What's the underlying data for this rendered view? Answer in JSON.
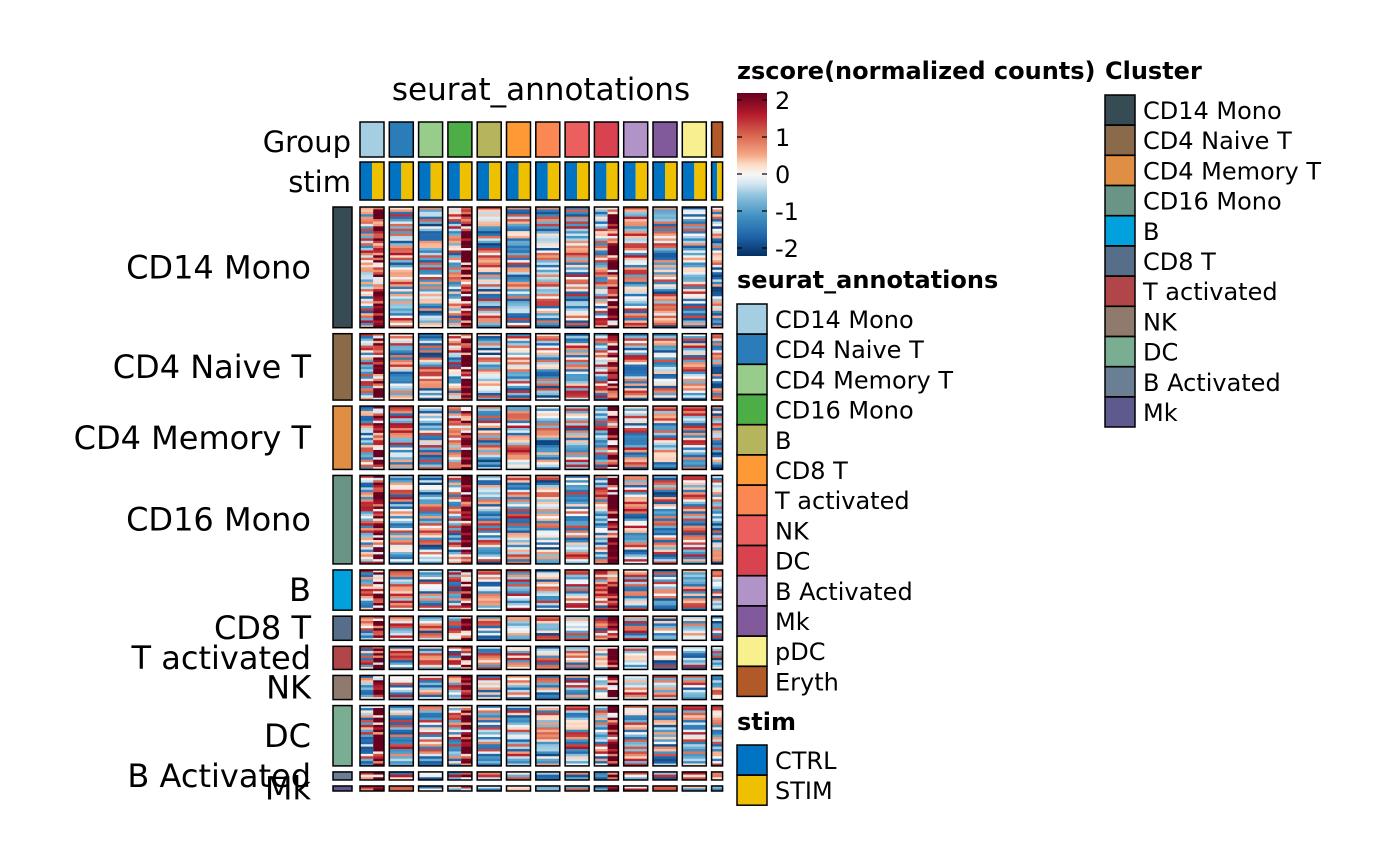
{
  "chart_data": {
    "type": "heatmap",
    "title": "seurat_annotations",
    "top_annotations": {
      "group_label": "Group",
      "stim_label": "stim"
    },
    "columns": [
      {
        "group": "CD14 Mono",
        "color": "#A6CEE3"
      },
      {
        "group": "CD4 Naive T",
        "color": "#2A7DB8"
      },
      {
        "group": "CD4 Memory T",
        "color": "#98CC8A"
      },
      {
        "group": "CD16 Mono",
        "color": "#4DAE47"
      },
      {
        "group": "B",
        "color": "#B6B45C"
      },
      {
        "group": "CD8 T",
        "color": "#FD9A36"
      },
      {
        "group": "T activated",
        "color": "#FB8852"
      },
      {
        "group": "NK",
        "color": "#EC5F5F"
      },
      {
        "group": "DC",
        "color": "#D8434F"
      },
      {
        "group": "B Activated",
        "color": "#B193C8"
      },
      {
        "group": "Mk",
        "color": "#805A9A"
      },
      {
        "group": "pDC",
        "color": "#F8F08F"
      },
      {
        "group": "Eryth",
        "color": "#B15928"
      }
    ],
    "row_clusters": [
      {
        "label": "CD14 Mono",
        "color": "#364B53",
        "weight": 120
      },
      {
        "label": "CD4 Naive T",
        "color": "#8A6A49",
        "weight": 66
      },
      {
        "label": "CD4 Memory T",
        "color": "#DF8E43",
        "weight": 63
      },
      {
        "label": "CD16 Mono",
        "color": "#6A9486",
        "weight": 88
      },
      {
        "label": "B",
        "color": "#00A1DC",
        "weight": 40
      },
      {
        "label": "CD8 T",
        "color": "#566E89",
        "weight": 24
      },
      {
        "label": "T activated",
        "color": "#B0454A",
        "weight": 23
      },
      {
        "label": "NK",
        "color": "#907A6D",
        "weight": 24
      },
      {
        "label": "DC",
        "color": "#79AE93",
        "weight": 60
      },
      {
        "label": "B Activated",
        "color": "#6B7F94",
        "weight": 8
      },
      {
        "label": "Mk",
        "color": "#5E5A8E",
        "weight": 5
      }
    ],
    "color_scale": {
      "name": "zscore(normalized counts)",
      "ticks": [
        2,
        1,
        0,
        -1,
        -2
      ],
      "range": [
        -2,
        2
      ]
    },
    "legends": {
      "annotations": {
        "title": "seurat_annotations",
        "items": [
          {
            "label": "CD14 Mono",
            "color": "#A6CEE3"
          },
          {
            "label": "CD4 Naive T",
            "color": "#2A7DB8"
          },
          {
            "label": "CD4 Memory T",
            "color": "#98CC8A"
          },
          {
            "label": "CD16 Mono",
            "color": "#4DAE47"
          },
          {
            "label": "B",
            "color": "#B6B45C"
          },
          {
            "label": "CD8 T",
            "color": "#FD9A36"
          },
          {
            "label": "T activated",
            "color": "#FB8852"
          },
          {
            "label": "NK",
            "color": "#EC5F5F"
          },
          {
            "label": "DC",
            "color": "#D8434F"
          },
          {
            "label": "B Activated",
            "color": "#B193C8"
          },
          {
            "label": "Mk",
            "color": "#805A9A"
          },
          {
            "label": "pDC",
            "color": "#F8F08F"
          },
          {
            "label": "Eryth",
            "color": "#B15928"
          }
        ]
      },
      "stim": {
        "title": "stim",
        "items": [
          {
            "label": "CTRL",
            "color": "#0073C2"
          },
          {
            "label": "STIM",
            "color": "#EFC000"
          }
        ]
      },
      "cluster": {
        "title": "Cluster",
        "items": [
          {
            "label": "CD14 Mono",
            "color": "#364B53"
          },
          {
            "label": "CD4 Naive T",
            "color": "#8A6A49"
          },
          {
            "label": "CD4 Memory T",
            "color": "#DF8E43"
          },
          {
            "label": "CD16 Mono",
            "color": "#6A9486"
          },
          {
            "label": "B",
            "color": "#00A1DC"
          },
          {
            "label": "CD8 T",
            "color": "#566E89"
          },
          {
            "label": "T activated",
            "color": "#B0454A"
          },
          {
            "label": "NK",
            "color": "#907A6D"
          },
          {
            "label": "DC",
            "color": "#79AE93"
          },
          {
            "label": "B Activated",
            "color": "#6B7F94"
          },
          {
            "label": "Mk",
            "color": "#5E5A8E"
          }
        ]
      }
    }
  }
}
